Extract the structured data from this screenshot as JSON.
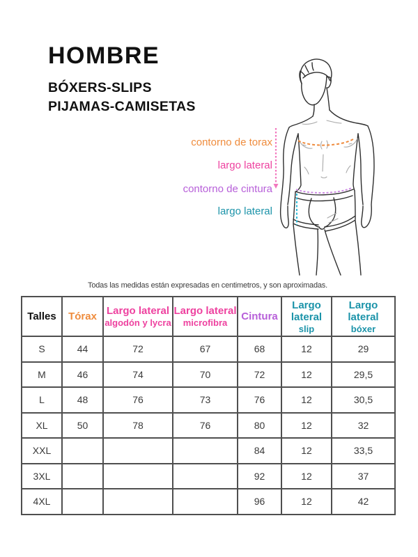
{
  "page": {
    "title": "HOMBRE",
    "subtitle1": "BÓXERS-SLIPS",
    "subtitle2": "PIJAMAS-CAMISETAS",
    "note": "Todas las medidas están expresadas en centimetros, y son aproximadas."
  },
  "colors": {
    "orange": "#EF8C3D",
    "pink": "#EE419F",
    "purple": "#B75FD9",
    "teal": "#1B93A9",
    "dash_orange": "#EF8A3B",
    "dash_pink": "#F277BE",
    "dash_purple": "#CE8DE4",
    "dash_teal": "#2FBCD8",
    "table_border": "#4F4F4F",
    "text": "#3A3A3A",
    "black": "#111111"
  },
  "figure_labels": [
    {
      "text": "contorno de torax",
      "color": "orange"
    },
    {
      "text": "largo lateral",
      "color": "pink"
    },
    {
      "text": "contorno de cintura",
      "color": "purple"
    },
    {
      "text": "largo lateral",
      "color": "teal"
    }
  ],
  "table": {
    "headers": [
      {
        "title": "Talles",
        "subtitle": "",
        "color": "black"
      },
      {
        "title": "Tórax",
        "subtitle": "",
        "color": "orange"
      },
      {
        "title": "Largo lateral",
        "subtitle": "algodón y lycra",
        "color": "pink"
      },
      {
        "title": "Largo lateral",
        "subtitle": "microfibra",
        "color": "pink"
      },
      {
        "title": "Cintura",
        "subtitle": "",
        "color": "purple"
      },
      {
        "title": "Largo lateral",
        "subtitle": "slip",
        "color": "teal"
      },
      {
        "title": "Largo lateral",
        "subtitle": "bóxer",
        "color": "teal"
      }
    ],
    "rows": [
      [
        "S",
        "44",
        "72",
        "67",
        "68",
        "12",
        "29"
      ],
      [
        "M",
        "46",
        "74",
        "70",
        "72",
        "12",
        "29,5"
      ],
      [
        "L",
        "48",
        "76",
        "73",
        "76",
        "12",
        "30,5"
      ],
      [
        "XL",
        "50",
        "78",
        "76",
        "80",
        "12",
        "32"
      ],
      [
        "XXL",
        "",
        "",
        "",
        "84",
        "12",
        "33,5"
      ],
      [
        "3XL",
        "",
        "",
        "",
        "92",
        "12",
        "37"
      ],
      [
        "4XL",
        "",
        "",
        "",
        "96",
        "12",
        "42"
      ]
    ]
  }
}
